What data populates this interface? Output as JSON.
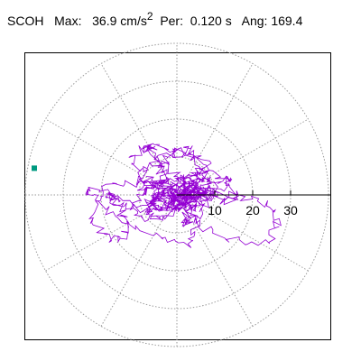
{
  "header": {
    "station": "SCOH",
    "max_label": "Max:",
    "max_value": "36.9 cm/s",
    "max_exp": "2",
    "per_label": "Per:",
    "per_value": "0.120 s",
    "ang_label": "Ang:",
    "ang_value": "169.4"
  },
  "chart_data": {
    "type": "polar-orbit",
    "title": "",
    "radial_ticks": [
      10,
      20,
      30
    ],
    "radial_max": 40,
    "spoke_interval_deg": 30,
    "grid": true,
    "max_amplitude": 36.9,
    "units": "cm/s^2",
    "period_s": 0.12,
    "angle_deg": 169.4,
    "colors": {
      "trace": "#9400d3",
      "grid": "#9a9a9a",
      "marker": "#009a80",
      "frame": "#000000"
    }
  }
}
